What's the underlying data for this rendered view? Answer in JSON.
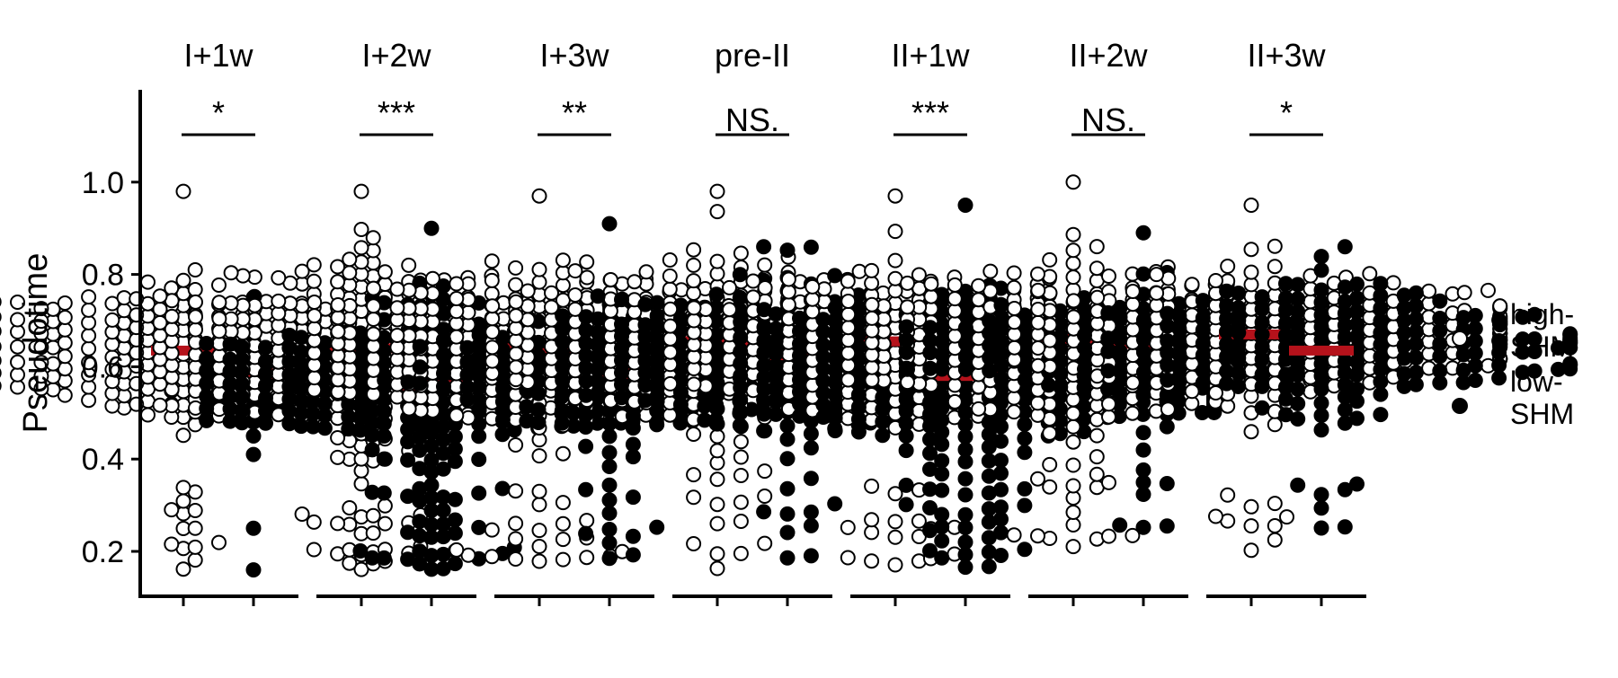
{
  "chart_data": {
    "type": "scatter",
    "subtype": "beeswarm-facets",
    "ylabel": "Pseudotime",
    "ylim": [
      0.11,
      1.2
    ],
    "yticks": [
      0.2,
      0.4,
      0.6,
      0.8,
      1.0
    ],
    "ytick_labels": [
      "0.2",
      "0.4",
      "0.6",
      "0.8",
      "1.0"
    ],
    "grid": false,
    "legend_position": "right",
    "legend": [
      {
        "key": "high",
        "label_lines": [
          "high-",
          "SHM"
        ],
        "fill": "#ffffff",
        "stroke": "#000000"
      },
      {
        "key": "low",
        "label_lines": [
          "low-",
          "SHM"
        ],
        "fill": "#000000",
        "stroke": "#000000"
      }
    ],
    "mean_bar_color": "#b5121b",
    "facets": [
      {
        "title": "I+1w",
        "significance": "*",
        "high": {
          "median": 0.635,
          "n": 300,
          "sd": 0.07,
          "upper": 0.98,
          "tail_min": 0.16,
          "tail_max": 0.34,
          "tail_n": 14
        },
        "low": {
          "median": 0.585,
          "n": 26,
          "sd": 0.07,
          "upper": 0.75,
          "outliers": [
            0.48,
            0.45,
            0.41,
            0.25,
            0.16
          ]
        }
      },
      {
        "title": "I+2w",
        "significance": "***",
        "high": {
          "median": 0.64,
          "n": 480,
          "sd": 0.08,
          "upper": 0.98,
          "tail_min": 0.16,
          "tail_max": 0.48,
          "tail_n": 40
        },
        "low": {
          "median": 0.56,
          "n": 420,
          "sd": 0.07,
          "upper": 0.9,
          "tail_min": 0.16,
          "tail_max": 0.46,
          "tail_n": 60
        }
      },
      {
        "title": "I+3w",
        "significance": "**",
        "high": {
          "median": 0.64,
          "n": 420,
          "sd": 0.08,
          "upper": 0.97,
          "tail_min": 0.16,
          "tail_max": 0.34,
          "tail_n": 22
        },
        "low": {
          "median": 0.585,
          "n": 160,
          "sd": 0.07,
          "upper": 0.91,
          "tail_min": 0.17,
          "tail_max": 0.45,
          "tail_n": 18
        }
      },
      {
        "title": "pre-II",
        "significance": "NS.",
        "high": {
          "median": 0.655,
          "n": 340,
          "sd": 0.08,
          "upper": 0.98,
          "tail_min": 0.16,
          "tail_max": 0.45,
          "tail_n": 20
        },
        "low": {
          "median": 0.625,
          "n": 340,
          "sd": 0.07,
          "upper": 0.86,
          "tail_min": 0.16,
          "tail_max": 0.43,
          "tail_n": 12
        }
      },
      {
        "title": "II+1w",
        "significance": "***",
        "high": {
          "median": 0.655,
          "n": 340,
          "sd": 0.07,
          "upper": 0.97,
          "tail_min": 0.17,
          "tail_max": 0.35,
          "tail_n": 18
        },
        "low": {
          "median": 0.58,
          "n": 520,
          "sd": 0.07,
          "upper": 0.95,
          "tail_min": 0.16,
          "tail_max": 0.4,
          "tail_n": 40
        }
      },
      {
        "title": "II+2w",
        "significance": "NS.",
        "high": {
          "median": 0.66,
          "n": 360,
          "sd": 0.08,
          "upper": 1.0,
          "tail_min": 0.19,
          "tail_max": 0.45,
          "tail_n": 20
        },
        "low": {
          "median": 0.65,
          "n": 230,
          "sd": 0.06,
          "upper": 0.89,
          "tail_min": 0.24,
          "tail_max": 0.47,
          "tail_n": 9
        }
      },
      {
        "title": "II+3w",
        "significance": "*",
        "high": {
          "median": 0.67,
          "n": 260,
          "sd": 0.07,
          "upper": 0.95,
          "tail_min": 0.16,
          "tail_max": 0.34,
          "tail_n": 10
        },
        "low": {
          "median": 0.635,
          "n": 200,
          "sd": 0.07,
          "upper": 0.86,
          "tail_min": 0.23,
          "tail_max": 0.39,
          "tail_n": 7
        }
      }
    ]
  }
}
